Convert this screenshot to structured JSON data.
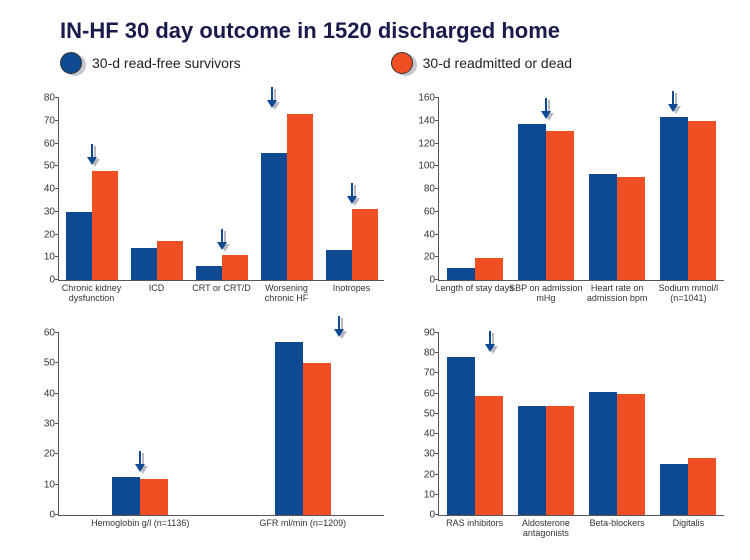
{
  "title": "IN-HF 30 day outcome in 1520 discharged home",
  "colors": {
    "series1": "#0d4a91",
    "series2": "#f04e23",
    "axis": "#555555",
    "text": "#222222",
    "titleColor": "#1a1a4d"
  },
  "legend": [
    {
      "label": "30-d read-free survivors",
      "color": "#0d4a91"
    },
    {
      "label": "30-d readmitted or dead",
      "color": "#f04e23"
    }
  ],
  "arrowSvg": {
    "w": 12,
    "h": 22
  },
  "panels": [
    {
      "id": "top-left",
      "ylim": [
        0,
        80
      ],
      "ystep": 10,
      "categories": [
        {
          "label": "Chronic kidney dysfunction",
          "v1": 30,
          "v2": 48,
          "arrow": true,
          "arrowSide": "mid"
        },
        {
          "label": "ICD",
          "v1": 14,
          "v2": 17
        },
        {
          "label": "CRT or CRT/D",
          "v1": 6,
          "v2": 11,
          "arrow": true,
          "arrowSide": "mid"
        },
        {
          "label": "Worsening chronic HF",
          "v1": 56,
          "v2": 73,
          "arrow": true,
          "arrowSide": "left"
        },
        {
          "label": "Inotropes",
          "v1": 13,
          "v2": 31,
          "arrow": true,
          "arrowSide": "mid"
        }
      ]
    },
    {
      "id": "top-right",
      "ylim": [
        0,
        160
      ],
      "ystep": 20,
      "categories": [
        {
          "label": "Length of stay days",
          "v1": 11,
          "v2": 19
        },
        {
          "label": "SBP on admission mHg",
          "v1": 137,
          "v2": 131,
          "arrow": true,
          "arrowSide": "mid"
        },
        {
          "label": "Heart rate on admission bpm",
          "v1": 93,
          "v2": 91
        },
        {
          "label": "Sodium mmol/l (n=1041)",
          "v1": 143,
          "v2": 140,
          "arrow": true,
          "arrowSide": "left"
        }
      ]
    },
    {
      "id": "bottom-left",
      "ylim": [
        0,
        60
      ],
      "ystep": 10,
      "categories": [
        {
          "label": "Hemoglobin g/l (n=1136)",
          "v1": 12.5,
          "v2": 12,
          "arrow": true,
          "arrowSide": "mid"
        },
        {
          "label": "GFR ml/min (n=1209)",
          "v1": 57,
          "v2": 50,
          "arrow": true,
          "arrowSide": "right"
        }
      ]
    },
    {
      "id": "bottom-right",
      "ylim": [
        0,
        90
      ],
      "ystep": 10,
      "categories": [
        {
          "label": "RAS inhibitors",
          "v1": 78,
          "v2": 59,
          "arrow": true,
          "arrowSide": "right"
        },
        {
          "label": "Aldosterone antagonists",
          "v1": 54,
          "v2": 54
        },
        {
          "label": "Beta-blockers",
          "v1": 61,
          "v2": 60
        },
        {
          "label": "Digitalis",
          "v1": 25,
          "v2": 28
        }
      ]
    }
  ]
}
